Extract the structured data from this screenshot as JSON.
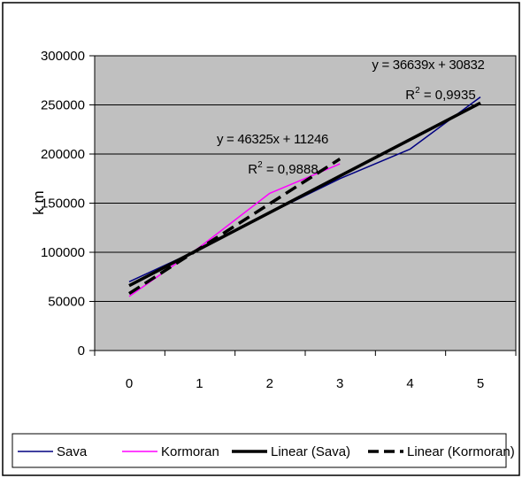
{
  "chart_data": {
    "type": "line",
    "ylabel": "k m",
    "xlabel": "",
    "ylim": [
      0,
      300000
    ],
    "xlim": [
      0,
      5
    ],
    "x_ticks": [
      "0",
      "1",
      "2",
      "3",
      "4",
      "5"
    ],
    "y_ticks": [
      "0",
      "50000",
      "100000",
      "150000",
      "200000",
      "250000",
      "300000"
    ],
    "grid": "horizontal",
    "plot_background": "#c0c0c0",
    "legend_position": "bottom",
    "series": [
      {
        "name": "Sava",
        "color": "#000080",
        "style": "solid",
        "x": [
          0,
          1,
          2,
          3,
          4,
          5
        ],
        "y": [
          70000,
          103000,
          140000,
          175000,
          205000,
          258000
        ]
      },
      {
        "name": "Kormoran",
        "color": "#ff00ff",
        "style": "solid",
        "x": [
          0,
          1,
          2,
          3
        ],
        "y": [
          55000,
          105000,
          160000,
          190000
        ]
      },
      {
        "name": "Linear (Sava)",
        "color": "#000000",
        "style": "thick-solid",
        "x": [
          0,
          5
        ],
        "y": [
          66000,
          252000
        ]
      },
      {
        "name": "Linear (Kormoran)",
        "color": "#000000",
        "style": "thick-dashed",
        "x": [
          0,
          3
        ],
        "y": [
          58000,
          195000
        ]
      }
    ],
    "annotations": [
      {
        "text": "y = 46325x + 11246",
        "near": "Linear (Kormoran)"
      },
      {
        "r2_text": "R",
        "sup": "2",
        "value": " = 0,9888",
        "near": "Linear (Kormoran)"
      },
      {
        "text": "y = 36639x + 30832",
        "near": "Linear (Sava)"
      },
      {
        "r2_text": "R",
        "sup": "2",
        "value": " = 0,9935",
        "near": "Linear (Sava)"
      }
    ]
  }
}
